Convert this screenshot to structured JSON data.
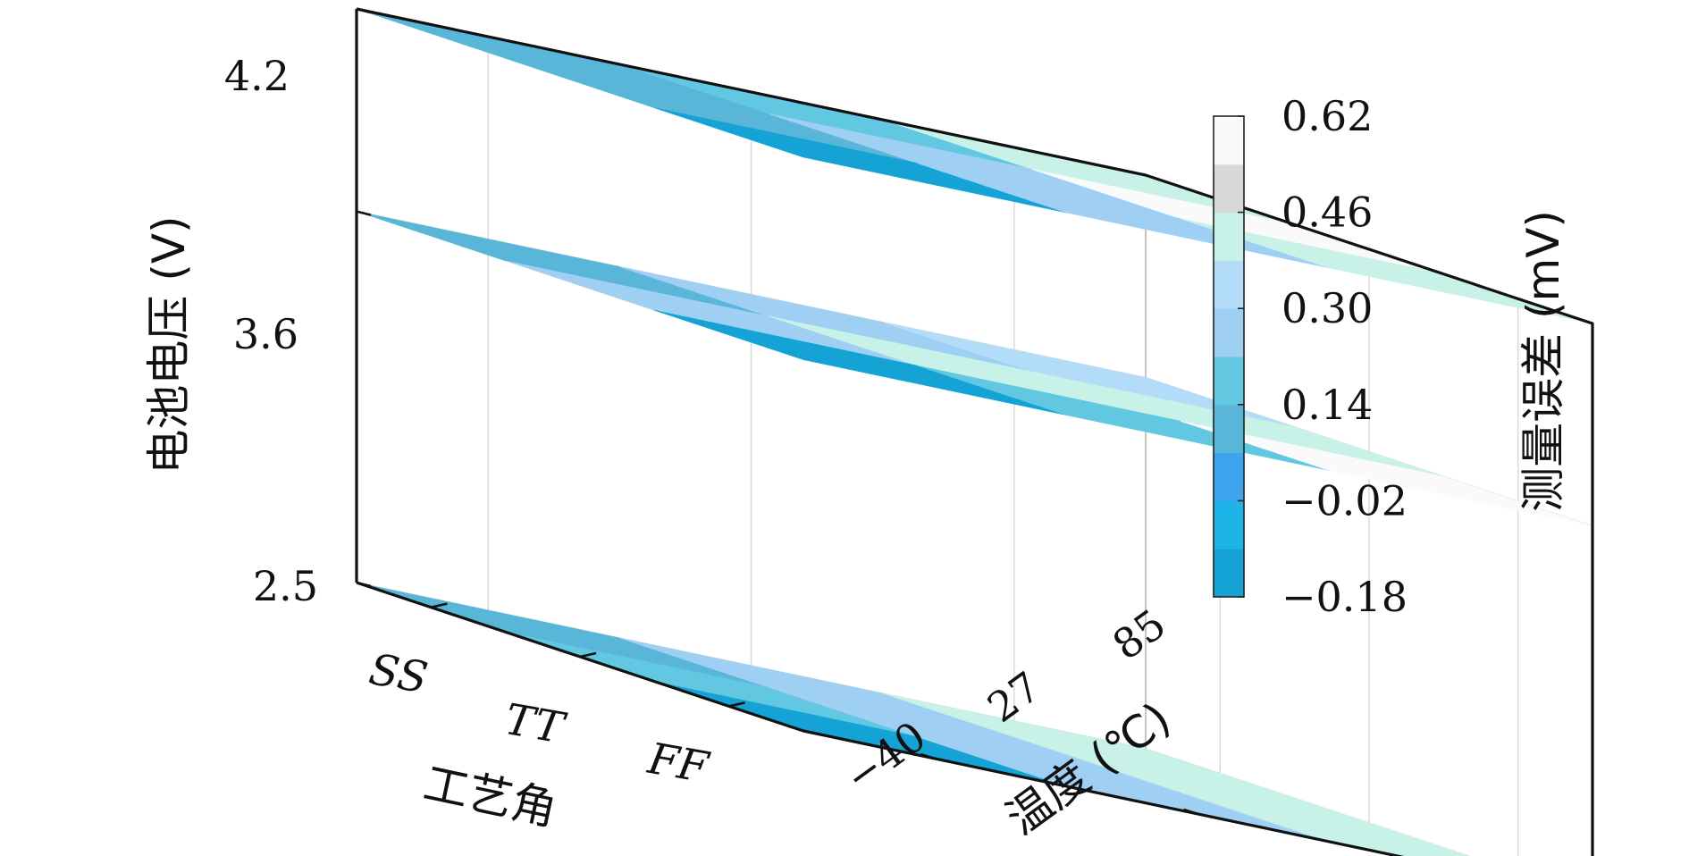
{
  "chart_data": {
    "type": "heatmap",
    "subtype": "3d-stacked-slices",
    "x_axis": {
      "label": "温度 (℃)",
      "categories": [
        "-40",
        "27",
        "85"
      ],
      "tick_labels": [
        "−40",
        "27",
        "85"
      ]
    },
    "y_axis": {
      "label": "工艺角",
      "categories": [
        "SS",
        "TT",
        "FF"
      ]
    },
    "z_axis": {
      "label": "电池电压 (V)",
      "values": [
        2.5,
        3.6,
        4.2
      ],
      "tick_labels": [
        "2.5",
        "3.6",
        "4.2"
      ]
    },
    "colorbar": {
      "label": "测量误差 (mV)",
      "range": [
        -0.18,
        0.62
      ],
      "tick_labels": [
        "0.62",
        "0.46",
        "0.30",
        "0.14",
        "−0.02",
        "−0.18"
      ],
      "tick_values": [
        0.62,
        0.46,
        0.3,
        0.14,
        -0.02,
        -0.18
      ],
      "colors": [
        "#15a3d6",
        "#1fb4e8",
        "#3ea4ee",
        "#59b6d9",
        "#62c7e0",
        "#9fd0f4",
        "#b3dcf8",
        "#c8f1e7",
        "#d8d8d8",
        "#fafafa"
      ]
    },
    "slices": [
      {
        "voltage": 2.5,
        "grid": [
          [
            0.12,
            0.24,
            0.38
          ],
          [
            0.16,
            0.26,
            0.46
          ],
          [
            -0.14,
            0.24,
            0.44
          ]
        ]
      },
      {
        "voltage": 3.6,
        "grid": [
          [
            0.14,
            0.22,
            0.32
          ],
          [
            0.24,
            0.38,
            0.4
          ],
          [
            -0.12,
            0.16,
            0.62
          ]
        ]
      },
      {
        "voltage": 4.2,
        "grid": [
          [
            0.14,
            0.2,
            0.44
          ],
          [
            0.14,
            0.26,
            0.54
          ],
          [
            -0.1,
            0.24,
            0.46
          ]
        ]
      }
    ],
    "grid": true,
    "legend": "colorbar-right"
  }
}
